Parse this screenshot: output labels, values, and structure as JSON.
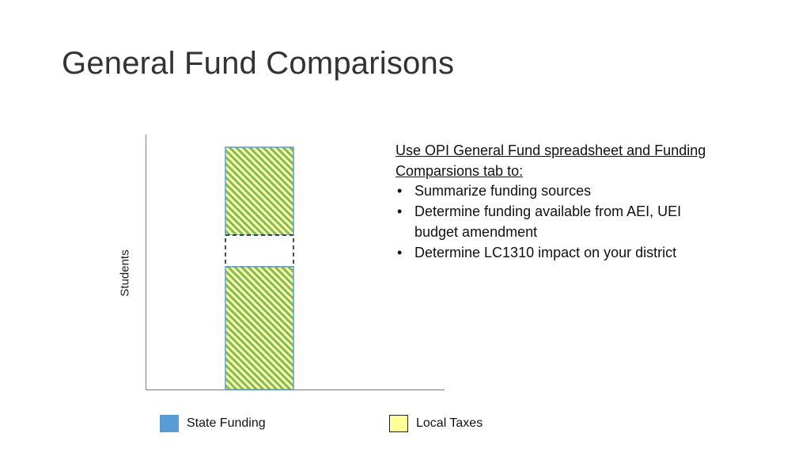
{
  "slide": {
    "title": "General Fund Comparisons"
  },
  "diagram": {
    "y_axis_label": "Students",
    "stacked_bar": {
      "segments": [
        {
          "fill": "hatched",
          "colors": [
            "#5b9bd5",
            "#ffff99"
          ]
        },
        {
          "fill": "blank-dashed"
        },
        {
          "fill": "hatched",
          "colors": [
            "#5b9bd5",
            "#ffff99"
          ]
        }
      ]
    }
  },
  "notes": {
    "heading": "Use OPI General Fund spreadsheet and Funding Comparsions tab to:",
    "bullets": [
      "Summarize funding sources",
      "Determine funding available from AEI, UEI budget amendment",
      "Determine LC1310 impact on your district"
    ]
  },
  "legend": {
    "items": [
      {
        "label": "State Funding",
        "color": "#5b9bd5",
        "border": "#5b9bd5"
      },
      {
        "label": "Local Taxes",
        "color": "#ffff99",
        "border": "#222222"
      }
    ]
  }
}
